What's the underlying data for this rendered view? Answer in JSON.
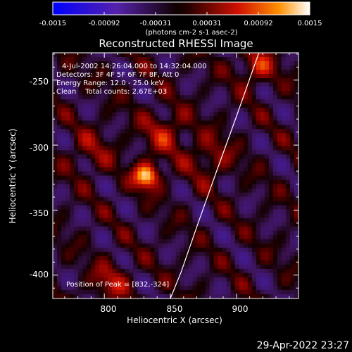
{
  "colorbar": {
    "tick_labels": [
      "-0.0015",
      "-0.00092",
      "-0.00031",
      "0.00031",
      "0.00092",
      "0.0015"
    ],
    "units_label": "(photons cm-2 s-1 asec-2)"
  },
  "title": "Reconstructed RHESSI Image",
  "annotations": {
    "time_range": "4-Jul-2002 14:26:04.000 to 14:32:04.000",
    "detectors": "Detectors: 3F 4F 5F 6F 7F 8F, Att 0",
    "energy_range": "Energy Range: 12.0 - 25.0 keV",
    "clean_counts": "Clean    Total counts: 2.67E+03",
    "peak_position": "Position of Peak = [832,-324]"
  },
  "footer_timestamp": "29-Apr-2022 23:27",
  "chart_data": {
    "type": "heatmap",
    "title": "Reconstructed RHESSI Image",
    "xlabel": "Heliocentric X (arcsec)",
    "ylabel": "Heliocentric Y (arcsec)",
    "xlim": [
      761,
      947
    ],
    "ylim": [
      -418,
      -229
    ],
    "x_ticks": [
      800,
      850,
      900
    ],
    "y_ticks": [
      -250,
      -300,
      -350,
      -400
    ],
    "color_range": [
      -0.0015,
      0.0015
    ],
    "colormap": "rhessi-blue-purple-red-yellow-white",
    "peak": {
      "x": 832,
      "y": -324
    },
    "sources": [
      {
        "x": 832,
        "y": -324,
        "sigma": 7,
        "amplitude": 0.0015
      },
      {
        "x": 846,
        "y": -290,
        "sigma": 12,
        "amplitude": 0.0006
      },
      {
        "x": 915,
        "y": -240,
        "sigma": 10,
        "amplitude": 0.0007
      },
      {
        "x": 805,
        "y": -405,
        "sigma": 10,
        "amplitude": 0.0006
      },
      {
        "x": 880,
        "y": -310,
        "sigma": 12,
        "amplitude": 0.0005
      },
      {
        "x": 790,
        "y": -305,
        "sigma": 12,
        "amplitude": 0.0004
      }
    ],
    "limb_curve": [
      {
        "x": 917,
        "y": -229
      },
      {
        "x": 900,
        "y": -278
      },
      {
        "x": 885,
        "y": -320
      },
      {
        "x": 871,
        "y": -360
      },
      {
        "x": 858,
        "y": -398
      },
      {
        "x": 850,
        "y": -418
      }
    ]
  }
}
